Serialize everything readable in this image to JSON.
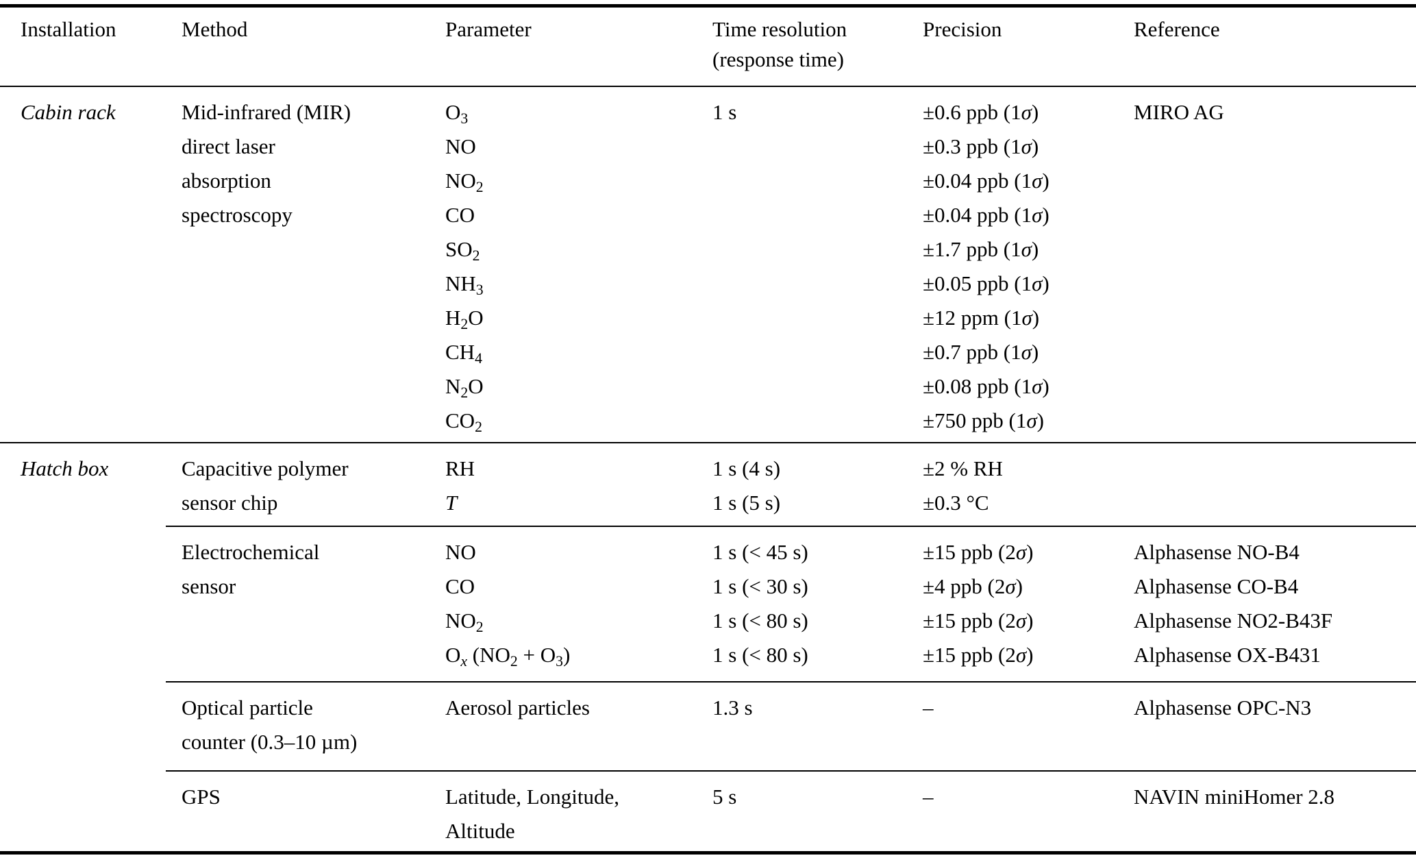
{
  "colors": {
    "background": "#ffffff",
    "text": "#000000",
    "rule": "#000000"
  },
  "table": {
    "columns": {
      "installation": [
        "Installation"
      ],
      "method": [
        "Method"
      ],
      "parameter": [
        "Parameter"
      ],
      "time_resolution": [
        "Time resolution",
        "(response time)"
      ],
      "precision": [
        "Precision"
      ],
      "reference": [
        "Reference"
      ]
    },
    "groups": [
      {
        "installation": "Cabin rack",
        "blocks": [
          {
            "method": [
              "Mid-infrared (MIR)",
              "direct laser",
              "absorption",
              "spectroscopy"
            ],
            "parameters": [
              "O<sub>3</sub>",
              "NO",
              "NO<sub>2</sub>",
              "CO",
              "SO<sub>2</sub>",
              "NH<sub>3</sub>",
              "H<sub>2</sub>O",
              "CH<sub>4</sub>",
              "N<sub>2</sub>O",
              "CO<sub>2</sub>"
            ],
            "time": [
              "1 s"
            ],
            "precision": [
              "±0.6 ppb (1<i>σ</i>)",
              "±0.3 ppb (1<i>σ</i>)",
              "±0.04 ppb (1<i>σ</i>)",
              "±0.04 ppb (1<i>σ</i>)",
              "±1.7 ppb (1<i>σ</i>)",
              "±0.05 ppb (1<i>σ</i>)",
              "±12 ppm (1<i>σ</i>)",
              "±0.7 ppb (1<i>σ</i>)",
              "±0.08 ppb (1<i>σ</i>)",
              "±750 ppb (1<i>σ</i>)"
            ],
            "reference": [
              "MIRO AG"
            ]
          }
        ]
      },
      {
        "installation": "Hatch box",
        "blocks": [
          {
            "method": [
              "Capacitive polymer",
              "sensor chip"
            ],
            "parameters": [
              "RH",
              "<i>T</i>"
            ],
            "time": [
              "1 s (4 s)",
              "1 s (5 s)"
            ],
            "precision": [
              "±2 % RH",
              "±0.3 °C"
            ],
            "reference": []
          },
          {
            "method": [
              "Electrochemical",
              "sensor"
            ],
            "parameters": [
              "NO",
              "CO",
              "NO<sub>2</sub>",
              "O<sub><i>x</i></sub> (NO<sub>2</sub> + O<sub>3</sub>)"
            ],
            "time": [
              "1 s (&lt; 45 s)",
              "1 s (&lt; 30 s)",
              "1 s (&lt; 80 s)",
              "1 s (&lt; 80 s)"
            ],
            "precision": [
              "±15 ppb (2<i>σ</i>)",
              "±4 ppb (2<i>σ</i>)",
              "±15 ppb (2<i>σ</i>)",
              "±15 ppb (2<i>σ</i>)"
            ],
            "reference": [
              "Alphasense NO-B4",
              "Alphasense CO-B4",
              "Alphasense NO2-B43F",
              "Alphasense OX-B431"
            ]
          },
          {
            "method": [
              "Optical particle",
              "counter (0.3–10 µm)"
            ],
            "parameters": [
              "Aerosol particles"
            ],
            "time": [
              "1.3 s"
            ],
            "precision": [
              "–"
            ],
            "reference": [
              "Alphasense OPC-N3"
            ]
          },
          {
            "method": [
              "GPS"
            ],
            "parameters": [
              "Latitude, Longitude,",
              "Altitude"
            ],
            "time": [
              "5 s"
            ],
            "precision": [
              "–"
            ],
            "reference": [
              "NAVIN miniHomer 2.8"
            ]
          }
        ]
      }
    ]
  }
}
